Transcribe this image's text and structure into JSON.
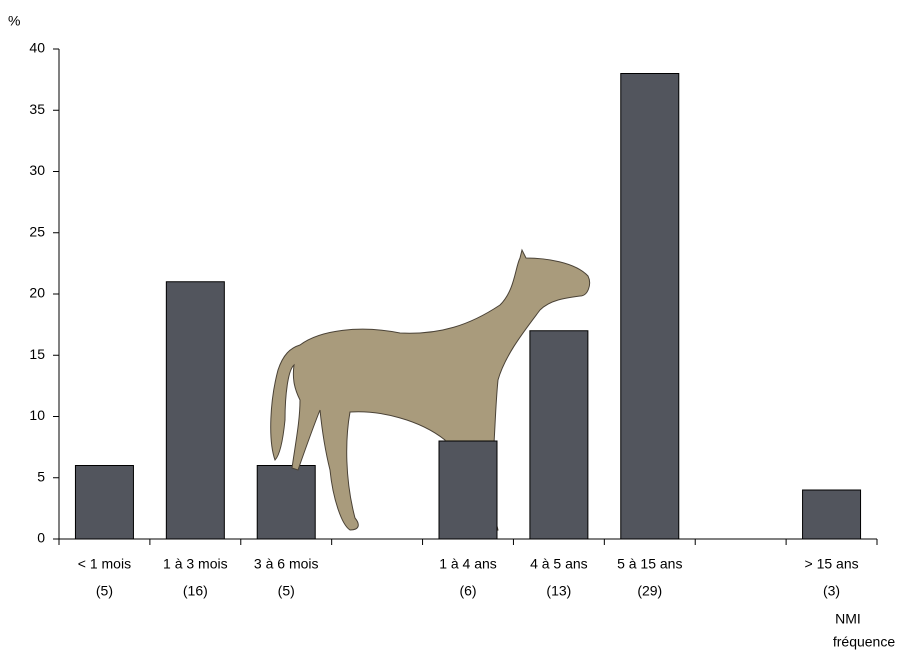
{
  "chart_data": {
    "type": "bar",
    "y_label": "%",
    "categories": [
      "< 1 mois",
      "1 à 3 mois",
      "3 à 6 mois",
      null,
      "1 à 4 ans",
      "4 à 5 ans",
      "5 à 15 ans",
      null,
      "> 15 ans"
    ],
    "counts": [
      "(5)",
      "(16)",
      "(5)",
      null,
      "(6)",
      "(13)",
      "(29)",
      null,
      "(3)"
    ],
    "values": [
      6,
      21,
      6,
      null,
      8,
      17,
      38,
      null,
      4
    ],
    "color": "#52555d",
    "ylim": [
      0,
      40
    ],
    "yticks": [
      0,
      5,
      10,
      15,
      20,
      25,
      30,
      35,
      40
    ],
    "notes": [
      "NMI",
      "fréquence"
    ]
  }
}
